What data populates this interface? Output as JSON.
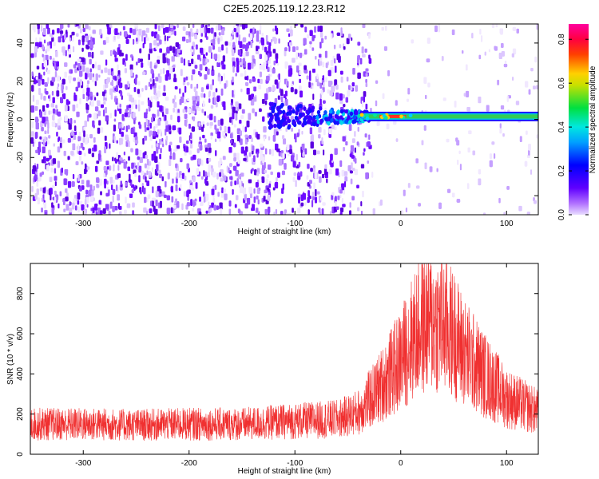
{
  "title": "C2E5.2025.119.12.23.R12",
  "colors": {
    "snr_line": "#f03030",
    "spectrogram_base": "#6a00ff",
    "band_core": "#33cc55"
  },
  "colorbar": {
    "label": "Normalized spectral amplitude",
    "ticks": [
      "0.0",
      "0.2",
      "0.4",
      "0.6",
      "0.8"
    ],
    "range": [
      0,
      0.87
    ],
    "colormap": "rainbow (magenta-blue-cyan-green-yellow-red-magenta)"
  },
  "chart_data": [
    {
      "type": "heatmap",
      "panel": "top",
      "xlabel": "Height of straight line (km)",
      "ylabel": "Frequency (Hz)",
      "xlim": [
        -350,
        130
      ],
      "ylim": [
        -50,
        50
      ],
      "xticks": [
        "-300",
        "-200",
        "-100",
        "0",
        "100"
      ],
      "yticks": [
        "-40",
        "-20",
        "0",
        "20",
        "40"
      ],
      "description_values": {
        "noise_region_x": [
          -350,
          -30
        ],
        "noise_amplitude_approx": 0.05,
        "band_start_x": -35,
        "band_frequency_hz": 1.5,
        "band_peak_amplitude_approx": 0.87,
        "band_peak_x": [
          -20,
          5
        ]
      }
    },
    {
      "type": "line",
      "panel": "bottom",
      "xlabel": "Height of straight line (km)",
      "ylabel": "SNR (10 * v/v)",
      "xlim": [
        -350,
        130
      ],
      "ylim": [
        0,
        950
      ],
      "xticks": [
        "-300",
        "-200",
        "-100",
        "0",
        "100"
      ],
      "yticks": [
        "0",
        "200",
        "400",
        "600",
        "800"
      ],
      "series": [
        {
          "x": [
            -350,
            -300,
            -250,
            -200,
            -150,
            -100,
            -60,
            -40,
            -20,
            0,
            10,
            20,
            30,
            40,
            50,
            60,
            80,
            100,
            130
          ],
          "y": [
            150,
            150,
            145,
            150,
            150,
            165,
            175,
            210,
            330,
            470,
            570,
            640,
            660,
            640,
            600,
            510,
            390,
            280,
            210
          ]
        }
      ]
    }
  ]
}
